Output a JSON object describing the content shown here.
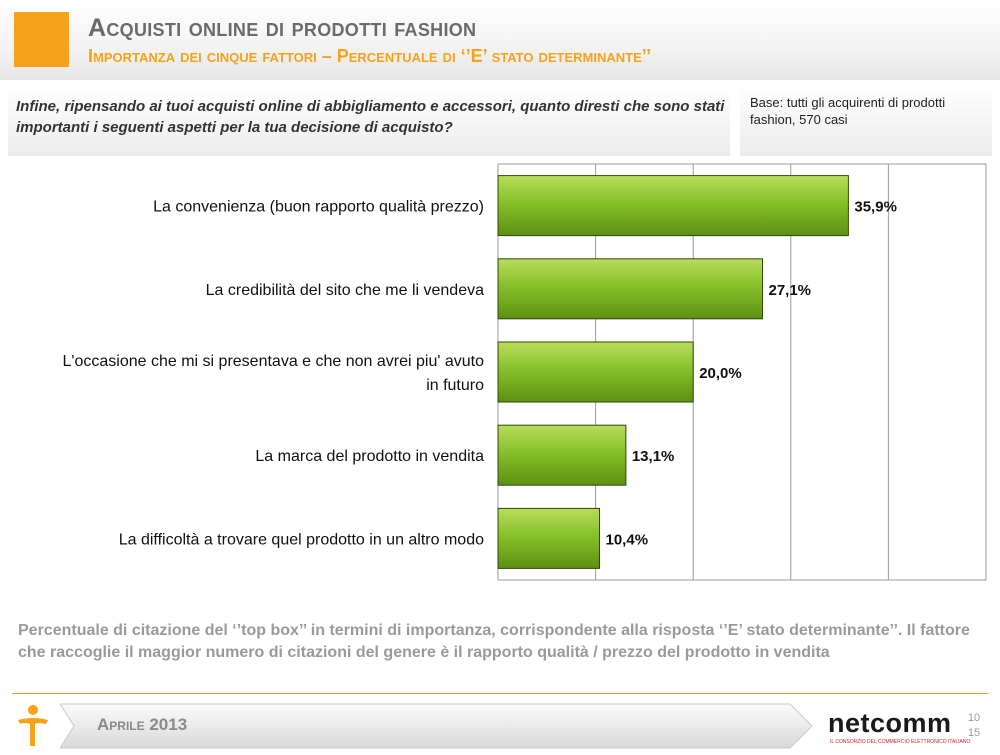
{
  "header": {
    "title": "Acquisti online di prodotti fashion",
    "subtitle": "Importanza dei cinque fattori – Percentuale di ‘’E’ stato determinante’’"
  },
  "question": "Infine, ripensando ai tuoi acquisti online di abbigliamento e accessori, quanto diresti che sono stati importanti i seguenti aspetti per la tua decisione di acquisto?",
  "base": "Base: tutti gli acquirenti di prodotti fashion, 570 casi",
  "chart_data": {
    "type": "bar",
    "orientation": "horizontal",
    "categories": [
      "La convenienza (buon rapporto qualità  prezzo)",
      "La credibilità  del sito che me li vendeva",
      "L'occasione che mi si presentava e che non avrei piu' avuto in futuro",
      "La marca del prodotto in vendita",
      "La difficoltà  a trovare quel prodotto in un altro modo"
    ],
    "category_lines": [
      [
        "La convenienza (buon rapporto qualità  prezzo)"
      ],
      [
        "La credibilità  del sito che me li vendeva"
      ],
      [
        "L'occasione che mi si presentava e che non avrei piu' avuto",
        "in futuro"
      ],
      [
        "La marca del prodotto in vendita"
      ],
      [
        "La difficoltà  a trovare quel prodotto in un altro modo"
      ]
    ],
    "values": [
      35.9,
      27.1,
      20.0,
      13.1,
      10.4
    ],
    "value_labels": [
      "35,9%",
      "27,1%",
      "20,0%",
      "13,1%",
      "10,4%"
    ],
    "xlim": [
      0,
      50
    ],
    "grid": true,
    "bar_color": "#7ab51d"
  },
  "footnote": "Percentuale di citazione del ‘’top box’’ in termini di importanza, corrispondente alla risposta ‘’E’ stato determinante’’. Il fattore che raccoglie il maggior numero di citazioni del genere è il rapporto qualità / prezzo del prodotto in vendita",
  "footer": {
    "date": "Aprile 2013",
    "brand": "netcomm",
    "brand_tagline": "IL CONSORZIO DEL COMMERCIO ELETTRONICO ITALIANO",
    "page_current": "10",
    "page_total": "15"
  },
  "colors": {
    "accent": "#f7a21b",
    "bar": "#7ab51d"
  }
}
